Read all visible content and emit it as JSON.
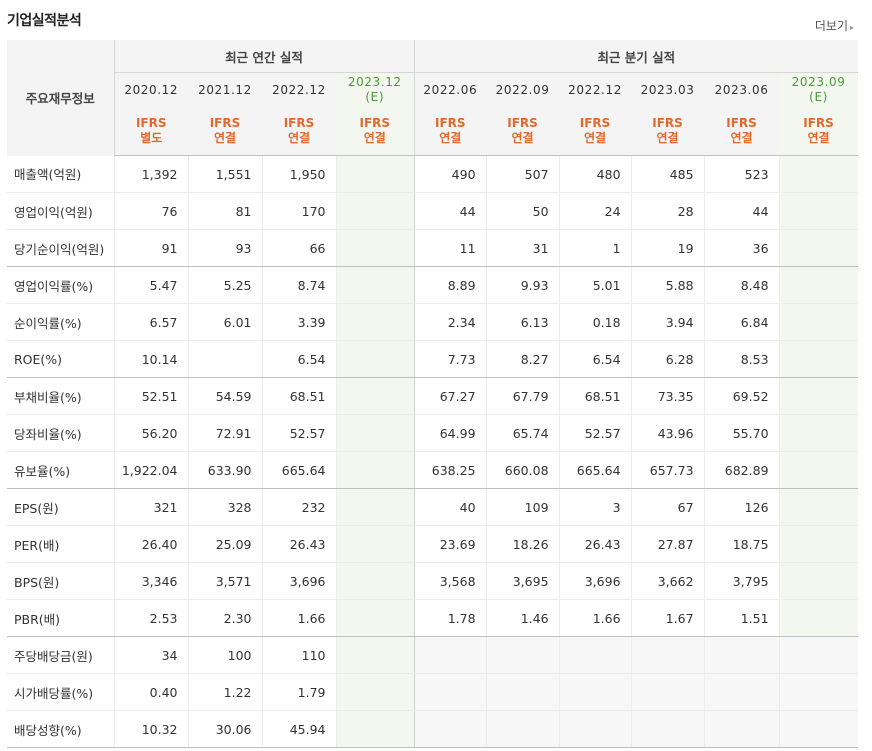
{
  "title": "기업실적분석",
  "more_label": "더보기",
  "more_arrow": "▸",
  "row_header": "주요재무정보",
  "annual_group": "최근 연간 실적",
  "quarter_group": "최근 분기 실적",
  "annual_periods": [
    {
      "y1": "2020.12",
      "y2": "",
      "t1": "IFRS",
      "t2": "별도"
    },
    {
      "y1": "2021.12",
      "y2": "",
      "t1": "IFRS",
      "t2": "연결"
    },
    {
      "y1": "2022.12",
      "y2": "",
      "t1": "IFRS",
      "t2": "연결"
    },
    {
      "y1": "2023.12",
      "y2": "(E)",
      "t1": "IFRS",
      "t2": "연결"
    }
  ],
  "quarter_periods": [
    {
      "y1": "2022.06",
      "y2": "",
      "t1": "IFRS",
      "t2": "연결"
    },
    {
      "y1": "2022.09",
      "y2": "",
      "t1": "IFRS",
      "t2": "연결"
    },
    {
      "y1": "2022.12",
      "y2": "",
      "t1": "IFRS",
      "t2": "연결"
    },
    {
      "y1": "2023.03",
      "y2": "",
      "t1": "IFRS",
      "t2": "연결"
    },
    {
      "y1": "2023.06",
      "y2": "",
      "t1": "IFRS",
      "t2": "연결"
    },
    {
      "y1": "2023.09",
      "y2": "(E)",
      "t1": "IFRS",
      "t2": "연결"
    }
  ],
  "rows": [
    {
      "label": "매출액(억원)",
      "annual": [
        "1,392",
        "1,551",
        "1,950",
        ""
      ],
      "quarter": [
        "490",
        "507",
        "480",
        "485",
        "523",
        ""
      ]
    },
    {
      "label": "영업이익(억원)",
      "annual": [
        "76",
        "81",
        "170",
        ""
      ],
      "quarter": [
        "44",
        "50",
        "24",
        "28",
        "44",
        ""
      ]
    },
    {
      "label": "당기순이익(억원)",
      "annual": [
        "91",
        "93",
        "66",
        ""
      ],
      "quarter": [
        "11",
        "31",
        "1",
        "19",
        "36",
        ""
      ]
    },
    {
      "label": "영업이익률(%)",
      "annual": [
        "5.47",
        "5.25",
        "8.74",
        ""
      ],
      "quarter": [
        "8.89",
        "9.93",
        "5.01",
        "5.88",
        "8.48",
        ""
      ]
    },
    {
      "label": "순이익률(%)",
      "annual": [
        "6.57",
        "6.01",
        "3.39",
        ""
      ],
      "quarter": [
        "2.34",
        "6.13",
        "0.18",
        "3.94",
        "6.84",
        ""
      ]
    },
    {
      "label": "ROE(%)",
      "annual": [
        "10.14",
        "",
        "6.54",
        ""
      ],
      "quarter": [
        "7.73",
        "8.27",
        "6.54",
        "6.28",
        "8.53",
        ""
      ]
    },
    {
      "label": "부채비율(%)",
      "annual": [
        "52.51",
        "54.59",
        "68.51",
        ""
      ],
      "quarter": [
        "67.27",
        "67.79",
        "68.51",
        "73.35",
        "69.52",
        ""
      ]
    },
    {
      "label": "당좌비율(%)",
      "annual": [
        "56.20",
        "72.91",
        "52.57",
        ""
      ],
      "quarter": [
        "64.99",
        "65.74",
        "52.57",
        "43.96",
        "55.70",
        ""
      ]
    },
    {
      "label": "유보율(%)",
      "annual": [
        "1,922.04",
        "633.90",
        "665.64",
        ""
      ],
      "quarter": [
        "638.25",
        "660.08",
        "665.64",
        "657.73",
        "682.89",
        ""
      ]
    },
    {
      "label": "EPS(원)",
      "annual": [
        "321",
        "328",
        "232",
        ""
      ],
      "quarter": [
        "40",
        "109",
        "3",
        "67",
        "126",
        ""
      ]
    },
    {
      "label": "PER(배)",
      "annual": [
        "26.40",
        "25.09",
        "26.43",
        ""
      ],
      "quarter": [
        "23.69",
        "18.26",
        "26.43",
        "27.87",
        "18.75",
        ""
      ]
    },
    {
      "label": "BPS(원)",
      "annual": [
        "3,346",
        "3,571",
        "3,696",
        ""
      ],
      "quarter": [
        "3,568",
        "3,695",
        "3,696",
        "3,662",
        "3,795",
        ""
      ]
    },
    {
      "label": "PBR(배)",
      "annual": [
        "2.53",
        "2.30",
        "1.66",
        ""
      ],
      "quarter": [
        "1.78",
        "1.46",
        "1.66",
        "1.67",
        "1.51",
        ""
      ]
    },
    {
      "label": "주당배당금(원)",
      "annual": [
        "34",
        "100",
        "110",
        ""
      ],
      "quarter": [
        "",
        "",
        "",
        "",
        "",
        ""
      ],
      "quarter_blank": true
    },
    {
      "label": "시가배당률(%)",
      "annual": [
        "0.40",
        "1.22",
        "1.79",
        ""
      ],
      "quarter": [
        "",
        "",
        "",
        "",
        "",
        ""
      ],
      "quarter_blank": true
    },
    {
      "label": "배당성향(%)",
      "annual": [
        "10.32",
        "30.06",
        "45.94",
        ""
      ],
      "quarter": [
        "",
        "",
        "",
        "",
        "",
        ""
      ],
      "quarter_blank": true
    }
  ],
  "colors": {
    "accent": "#e2692b",
    "estimate_label": "#4c9a3a",
    "estimate_bg": "#f3f7f0",
    "header_bg": "#f4f4f4"
  }
}
